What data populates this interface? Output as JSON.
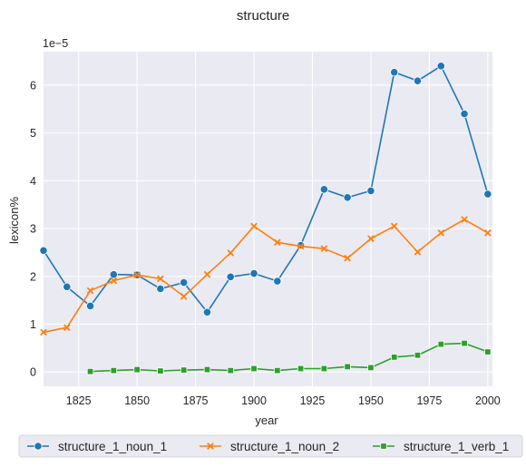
{
  "chart_data": {
    "type": "line",
    "title": "structure",
    "xlabel": "year",
    "ylabel": "lexicon%",
    "y_scale_label": "1e−5",
    "xlim": [
      1810,
      2002
    ],
    "ylim": [
      -0.3,
      6.7
    ],
    "x_ticks": [
      1825,
      1850,
      1875,
      1900,
      1925,
      1950,
      1975,
      2000
    ],
    "y_ticks": [
      0,
      1,
      2,
      3,
      4,
      5,
      6
    ],
    "grid": true,
    "legend_position": "bottom",
    "series": [
      {
        "name": "structure_1_noun_1",
        "color": "#1f77b4",
        "marker": "circle",
        "x": [
          1810,
          1820,
          1830,
          1840,
          1850,
          1860,
          1870,
          1880,
          1890,
          1900,
          1910,
          1920,
          1930,
          1940,
          1950,
          1960,
          1970,
          1980,
          1990,
          2000
        ],
        "y": [
          2.54,
          1.78,
          1.38,
          2.04,
          2.03,
          1.74,
          1.87,
          1.25,
          1.99,
          2.06,
          1.9,
          2.65,
          3.82,
          3.65,
          3.79,
          6.27,
          6.09,
          6.4,
          5.4,
          3.72
        ]
      },
      {
        "name": "structure_1_noun_2",
        "color": "#ff7f0e",
        "marker": "x",
        "x": [
          1810,
          1820,
          1830,
          1840,
          1850,
          1860,
          1870,
          1880,
          1890,
          1900,
          1910,
          1920,
          1930,
          1940,
          1950,
          1960,
          1970,
          1980,
          1990,
          2000
        ],
        "y": [
          0.83,
          0.93,
          1.7,
          1.91,
          2.03,
          1.95,
          1.58,
          2.04,
          2.49,
          3.05,
          2.71,
          2.63,
          2.58,
          2.38,
          2.79,
          3.05,
          2.51,
          2.91,
          3.19,
          2.91
        ]
      },
      {
        "name": "structure_1_verb_1",
        "color": "#2ca02c",
        "marker": "square",
        "x": [
          1830,
          1840,
          1850,
          1860,
          1870,
          1880,
          1890,
          1900,
          1910,
          1920,
          1930,
          1940,
          1950,
          1960,
          1970,
          1980,
          1990,
          2000
        ],
        "y": [
          0.01,
          0.03,
          0.05,
          0.02,
          0.04,
          0.05,
          0.03,
          0.07,
          0.03,
          0.07,
          0.07,
          0.11,
          0.09,
          0.31,
          0.35,
          0.58,
          0.6,
          0.42
        ]
      }
    ]
  }
}
